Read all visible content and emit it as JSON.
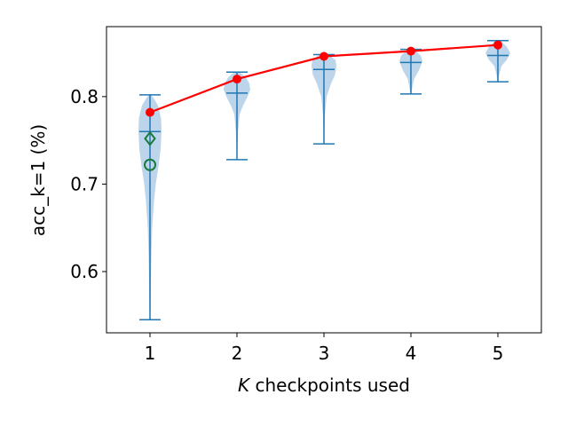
{
  "chart_data": {
    "type": "violin",
    "xlabel_italic": "K",
    "xlabel_rest": " checkpoints used",
    "ylabel": "acc_k=1 (%)",
    "x_ticks": [
      "1",
      "2",
      "3",
      "4",
      "5"
    ],
    "y_ticks": [
      "0.6",
      "0.7",
      "0.8"
    ],
    "y_tick_values": [
      0.6,
      0.7,
      0.8
    ],
    "ylim": [
      0.53,
      0.88
    ],
    "xlim": [
      0.5,
      5.5
    ],
    "grid": false,
    "colors": {
      "violin_fill": "#a6c7e3",
      "violin_stroke": "#1f77b4",
      "mean_line": "#ff0000",
      "markers": "#1a7a3c"
    },
    "violins": [
      {
        "x": 1,
        "min": 0.545,
        "max": 0.802,
        "mean": 0.76,
        "profile": [
          [
            0.545,
            0.3
          ],
          [
            0.56,
            0.7
          ],
          [
            0.59,
            1.1
          ],
          [
            0.62,
            1.6
          ],
          [
            0.65,
            2.5
          ],
          [
            0.68,
            4.5
          ],
          [
            0.7,
            6.5
          ],
          [
            0.72,
            9.5
          ],
          [
            0.74,
            12.0
          ],
          [
            0.76,
            13.0
          ],
          [
            0.775,
            12.5
          ],
          [
            0.79,
            9.0
          ],
          [
            0.8,
            3.0
          ],
          [
            0.802,
            0.5
          ]
        ]
      },
      {
        "x": 2,
        "min": 0.728,
        "max": 0.828,
        "mean": 0.804,
        "profile": [
          [
            0.728,
            0.3
          ],
          [
            0.74,
            0.6
          ],
          [
            0.76,
            1.2
          ],
          [
            0.78,
            3.0
          ],
          [
            0.79,
            7.0
          ],
          [
            0.8,
            12.0
          ],
          [
            0.808,
            15.0
          ],
          [
            0.815,
            14.0
          ],
          [
            0.822,
            10.0
          ],
          [
            0.828,
            3.0
          ]
        ]
      },
      {
        "x": 3,
        "min": 0.746,
        "max": 0.848,
        "mean": 0.831,
        "profile": [
          [
            0.746,
            0.3
          ],
          [
            0.76,
            0.6
          ],
          [
            0.78,
            1.2
          ],
          [
            0.8,
            3.0
          ],
          [
            0.815,
            8.0
          ],
          [
            0.825,
            12.5
          ],
          [
            0.835,
            14.0
          ],
          [
            0.842,
            13.0
          ],
          [
            0.848,
            5.0
          ]
        ]
      },
      {
        "x": 4,
        "min": 0.803,
        "max": 0.854,
        "mean": 0.839,
        "profile": [
          [
            0.803,
            0.5
          ],
          [
            0.81,
            1.5
          ],
          [
            0.82,
            3.5
          ],
          [
            0.83,
            9.0
          ],
          [
            0.84,
            13.0
          ],
          [
            0.847,
            11.0
          ],
          [
            0.854,
            3.0
          ]
        ]
      },
      {
        "x": 5,
        "min": 0.817,
        "max": 0.864,
        "mean": 0.847,
        "profile": [
          [
            0.817,
            0.5
          ],
          [
            0.825,
            1.5
          ],
          [
            0.835,
            4.0
          ],
          [
            0.842,
            10.0
          ],
          [
            0.85,
            14.0
          ],
          [
            0.857,
            10.0
          ],
          [
            0.864,
            3.0
          ]
        ]
      }
    ],
    "mean_curve": {
      "x": [
        1,
        2,
        3,
        4,
        5
      ],
      "y": [
        0.782,
        0.82,
        0.846,
        0.852,
        0.859
      ]
    },
    "extra_markers": [
      {
        "shape": "diamond",
        "x": 1,
        "y": 0.752
      },
      {
        "shape": "circle",
        "x": 1,
        "y": 0.722
      }
    ]
  }
}
